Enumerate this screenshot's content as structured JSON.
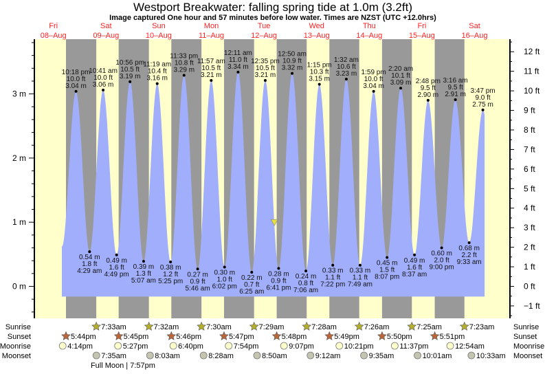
{
  "chart_data": {
    "type": "area",
    "title": "Westport Breakwater: falling  spring tide at 1.0m (3.2ft)",
    "subtitle": "Image captured One hour and 57 minutes before low water. Times are NZST (UTC +12.0hrs)",
    "days": [
      {
        "weekday": "Fri",
        "date": "08–Aug"
      },
      {
        "weekday": "Sat",
        "date": "09–Aug"
      },
      {
        "weekday": "Sun",
        "date": "10–Aug"
      },
      {
        "weekday": "Mon",
        "date": "11–Aug"
      },
      {
        "weekday": "Tue",
        "date": "12–Aug"
      },
      {
        "weekday": "Wed",
        "date": "13–Aug"
      },
      {
        "weekday": "Thu",
        "date": "14–Aug"
      },
      {
        "weekday": "Fri",
        "date": "15–Aug"
      },
      {
        "weekday": "Sat",
        "date": "16–Aug"
      }
    ],
    "left_axis": {
      "unit": "m",
      "ticks": [
        "0 m",
        "1 m",
        "2 m",
        "3 m"
      ],
      "values": [
        0,
        1,
        2,
        3
      ]
    },
    "right_axis": {
      "unit": "ft",
      "ticks": [
        "−1 ft",
        "0 ft",
        "1 ft",
        "2 ft",
        "3 ft",
        "4 ft",
        "5 ft",
        "6 ft",
        "7 ft",
        "8 ft",
        "9 ft",
        "10 ft",
        "11 ft",
        "12 ft"
      ],
      "values": [
        -1,
        0,
        1,
        2,
        3,
        4,
        5,
        6,
        7,
        8,
        9,
        10,
        11,
        12
      ]
    },
    "ylim_m": [
      -0.5,
      3.8
    ],
    "extremes": [
      {
        "day": 0,
        "time": "10:18 pm",
        "type": "high",
        "ft": "10.0 ft",
        "m": 3.04
      },
      {
        "day": 1,
        "time": "4:29 am",
        "type": "low",
        "ft": "1.8 ft",
        "m": 0.54
      },
      {
        "day": 1,
        "time": "10:41 am",
        "type": "high",
        "ft": "10.0 ft",
        "m": 3.06
      },
      {
        "day": 1,
        "time": "4:49 pm",
        "type": "low",
        "ft": "1.6 ft",
        "m": 0.49
      },
      {
        "day": 1,
        "time": "10:56 pm",
        "type": "high",
        "ft": "10.5 ft",
        "m": 3.19
      },
      {
        "day": 2,
        "time": "5:07 am",
        "type": "low",
        "ft": "1.3 ft",
        "m": 0.39
      },
      {
        "day": 2,
        "time": "11:19 am",
        "type": "high",
        "ft": "10.4 ft",
        "m": 3.16
      },
      {
        "day": 2,
        "time": "5:25 pm",
        "type": "low",
        "ft": "1.2 ft",
        "m": 0.38
      },
      {
        "day": 2,
        "time": "11:33 pm",
        "type": "high",
        "ft": "10.8 ft",
        "m": 3.29
      },
      {
        "day": 3,
        "time": "5:46 am",
        "type": "low",
        "ft": "0.9 ft",
        "m": 0.27
      },
      {
        "day": 3,
        "time": "11:57 am",
        "type": "high",
        "ft": "10.5 ft",
        "m": 3.21
      },
      {
        "day": 3,
        "time": "6:02 pm",
        "type": "low",
        "ft": "1.0 ft",
        "m": 0.3
      },
      {
        "day": 4,
        "time": "12:11 am",
        "type": "high",
        "ft": "11.0 ft",
        "m": 3.34
      },
      {
        "day": 4,
        "time": "6:25 am",
        "type": "low",
        "ft": "0.7 ft",
        "m": 0.22
      },
      {
        "day": 4,
        "time": "12:35 pm",
        "type": "high",
        "ft": "10.5 ft",
        "m": 3.21
      },
      {
        "day": 4,
        "time": "6:41 pm",
        "type": "low",
        "ft": "0.9 ft",
        "m": 0.28
      },
      {
        "day": 5,
        "time": "12:50 am",
        "type": "high",
        "ft": "10.9 ft",
        "m": 3.32
      },
      {
        "day": 5,
        "time": "7:06 am",
        "type": "low",
        "ft": "0.8 ft",
        "m": 0.24
      },
      {
        "day": 5,
        "time": "1:15 pm",
        "type": "high",
        "ft": "10.3 ft",
        "m": 3.15
      },
      {
        "day": 5,
        "time": "7:22 pm",
        "type": "low",
        "ft": "1.1 ft",
        "m": 0.33
      },
      {
        "day": 6,
        "time": "1:32 am",
        "type": "high",
        "ft": "10.6 ft",
        "m": 3.23
      },
      {
        "day": 6,
        "time": "7:49 am",
        "type": "low",
        "ft": "1.1 ft",
        "m": 0.33
      },
      {
        "day": 6,
        "time": "1:59 pm",
        "type": "high",
        "ft": "10.0 ft",
        "m": 3.04
      },
      {
        "day": 6,
        "time": "8:07 pm",
        "type": "low",
        "ft": "1.5 ft",
        "m": 0.45
      },
      {
        "day": 7,
        "time": "2:20 am",
        "type": "high",
        "ft": "10.1 ft",
        "m": 3.09
      },
      {
        "day": 7,
        "time": "8:37 am",
        "type": "low",
        "ft": "1.6 ft",
        "m": 0.49
      },
      {
        "day": 7,
        "time": "2:48 pm",
        "type": "high",
        "ft": "9.5 ft",
        "m": 2.9
      },
      {
        "day": 7,
        "time": "9:00 pm",
        "type": "low",
        "ft": "2.0 ft",
        "m": 0.6
      },
      {
        "day": 8,
        "time": "3:16 am",
        "type": "high",
        "ft": "9.5 ft",
        "m": 2.91
      },
      {
        "day": 8,
        "time": "9:33 am",
        "type": "low",
        "ft": "2.2 ft",
        "m": 0.68
      },
      {
        "day": 8,
        "time": "3:47 pm",
        "type": "high",
        "ft": "9.0 ft",
        "m": 2.75
      }
    ],
    "current": {
      "day": 4,
      "time": "4:44 pm",
      "m": 1.0
    },
    "colors": {
      "water": "#a0aefc",
      "day": "#ffffcc",
      "night": "#999999",
      "day_label": "#ff2020",
      "sunrise": "#b5ad2c",
      "sunset": "#b8663a",
      "moonrise": "#ffffcc",
      "moonset": "#c4c4b0",
      "marker": "#e8e040"
    }
  },
  "astro": {
    "labels": {
      "sunrise": "Sunrise",
      "sunset": "Sunset",
      "moonrise": "Moonrise",
      "moonset": "Moonset"
    },
    "sunrise": [
      {
        "day": 1,
        "time": "7:33am"
      },
      {
        "day": 2,
        "time": "7:32am"
      },
      {
        "day": 3,
        "time": "7:30am"
      },
      {
        "day": 4,
        "time": "7:29am"
      },
      {
        "day": 5,
        "time": "7:28am"
      },
      {
        "day": 6,
        "time": "7:26am"
      },
      {
        "day": 7,
        "time": "7:25am"
      },
      {
        "day": 8,
        "time": "7:23am"
      }
    ],
    "sunset": [
      {
        "day": 0,
        "time": "5:44pm"
      },
      {
        "day": 1,
        "time": "5:45pm"
      },
      {
        "day": 2,
        "time": "5:46pm"
      },
      {
        "day": 3,
        "time": "5:47pm"
      },
      {
        "day": 4,
        "time": "5:48pm"
      },
      {
        "day": 5,
        "time": "5:49pm"
      },
      {
        "day": 6,
        "time": "5:50pm"
      },
      {
        "day": 7,
        "time": "5:51pm"
      }
    ],
    "moonrise": [
      {
        "day": 0,
        "time": "4:14pm"
      },
      {
        "day": 1,
        "time": "5:27pm"
      },
      {
        "day": 2,
        "time": "6:40pm"
      },
      {
        "day": 3,
        "time": "7:54pm"
      },
      {
        "day": 4,
        "time": "9:07pm"
      },
      {
        "day": 5,
        "time": "10:21pm"
      },
      {
        "day": 6,
        "time": "11:37pm"
      },
      {
        "day": 8,
        "time": "12:54am"
      }
    ],
    "moonset": [
      {
        "day": 1,
        "time": "7:35am"
      },
      {
        "day": 2,
        "time": "8:03am"
      },
      {
        "day": 3,
        "time": "8:28am"
      },
      {
        "day": 4,
        "time": "8:50am"
      },
      {
        "day": 5,
        "time": "9:12am"
      },
      {
        "day": 6,
        "time": "9:35am"
      },
      {
        "day": 7,
        "time": "10:01am"
      },
      {
        "day": 8,
        "time": "10:33am"
      }
    ],
    "moon_phase": {
      "label": "Full Moon | 7:57pm",
      "day": 1
    }
  }
}
